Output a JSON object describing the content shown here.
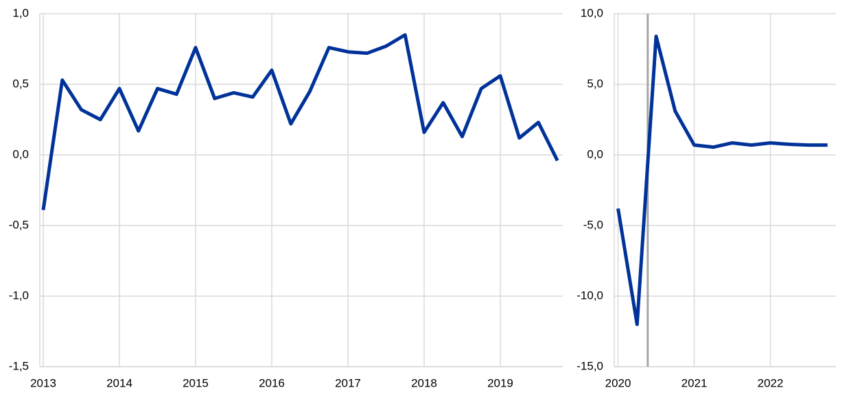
{
  "chart_data": [
    {
      "type": "line",
      "color": "#003299",
      "x": [
        2013,
        2013.25,
        2013.5,
        2013.75,
        2014,
        2014.25,
        2014.5,
        2014.75,
        2015,
        2015.25,
        2015.5,
        2015.75,
        2016,
        2016.25,
        2016.5,
        2016.75,
        2017,
        2017.25,
        2017.5,
        2017.75,
        2018,
        2018.25,
        2018.5,
        2018.75,
        2019,
        2019.25,
        2019.5,
        2019.75
      ],
      "values": [
        -0.39,
        0.53,
        0.32,
        0.25,
        0.47,
        0.17,
        0.47,
        0.43,
        0.76,
        0.4,
        0.44,
        0.41,
        0.6,
        0.22,
        0.45,
        0.76,
        0.73,
        0.72,
        0.77,
        0.85,
        0.16,
        0.37,
        0.13,
        0.47,
        0.56,
        0.12,
        0.23,
        -0.04
      ],
      "xlim": [
        2012.955,
        2019.82
      ],
      "xticks": [
        2013,
        2014,
        2015,
        2016,
        2017,
        2018,
        2019
      ],
      "ylim": [
        -1.5,
        1
      ],
      "yticks": [
        {
          "value": -1.5,
          "label": "-1,5"
        },
        {
          "value": -1,
          "label": "-1,0"
        },
        {
          "value": -0.5,
          "label": "-0,5"
        },
        {
          "value": 0,
          "label": "0,0"
        },
        {
          "value": 0.5,
          "label": "0,5"
        },
        {
          "value": 1,
          "label": "1,0"
        }
      ],
      "grid": true
    },
    {
      "type": "line",
      "color": "#003299",
      "x": [
        2020,
        2020.25,
        2020.5,
        2020.75,
        2021,
        2021.25,
        2021.5,
        2021.75,
        2022,
        2022.25,
        2022.5,
        2022.75
      ],
      "values": [
        -3.8,
        -12,
        8.4,
        3.1,
        0.7,
        0.55,
        0.85,
        0.7,
        0.85,
        0.75,
        0.7,
        0.7
      ],
      "xlim": [
        2019.95,
        2022.86
      ],
      "xticks": [
        2020,
        2021,
        2022
      ],
      "ylim": [
        -15,
        10
      ],
      "yticks": [
        {
          "value": -15,
          "label": "-15,0"
        },
        {
          "value": -10,
          "label": "-10,0"
        },
        {
          "value": -5,
          "label": "-5,0"
        },
        {
          "value": 0,
          "label": "0,0"
        },
        {
          "value": 5,
          "label": "5,0"
        },
        {
          "value": 10,
          "label": "10,0"
        }
      ],
      "grid": true,
      "vline": 2020.39,
      "vline_color": "#a6a6a6"
    }
  ]
}
